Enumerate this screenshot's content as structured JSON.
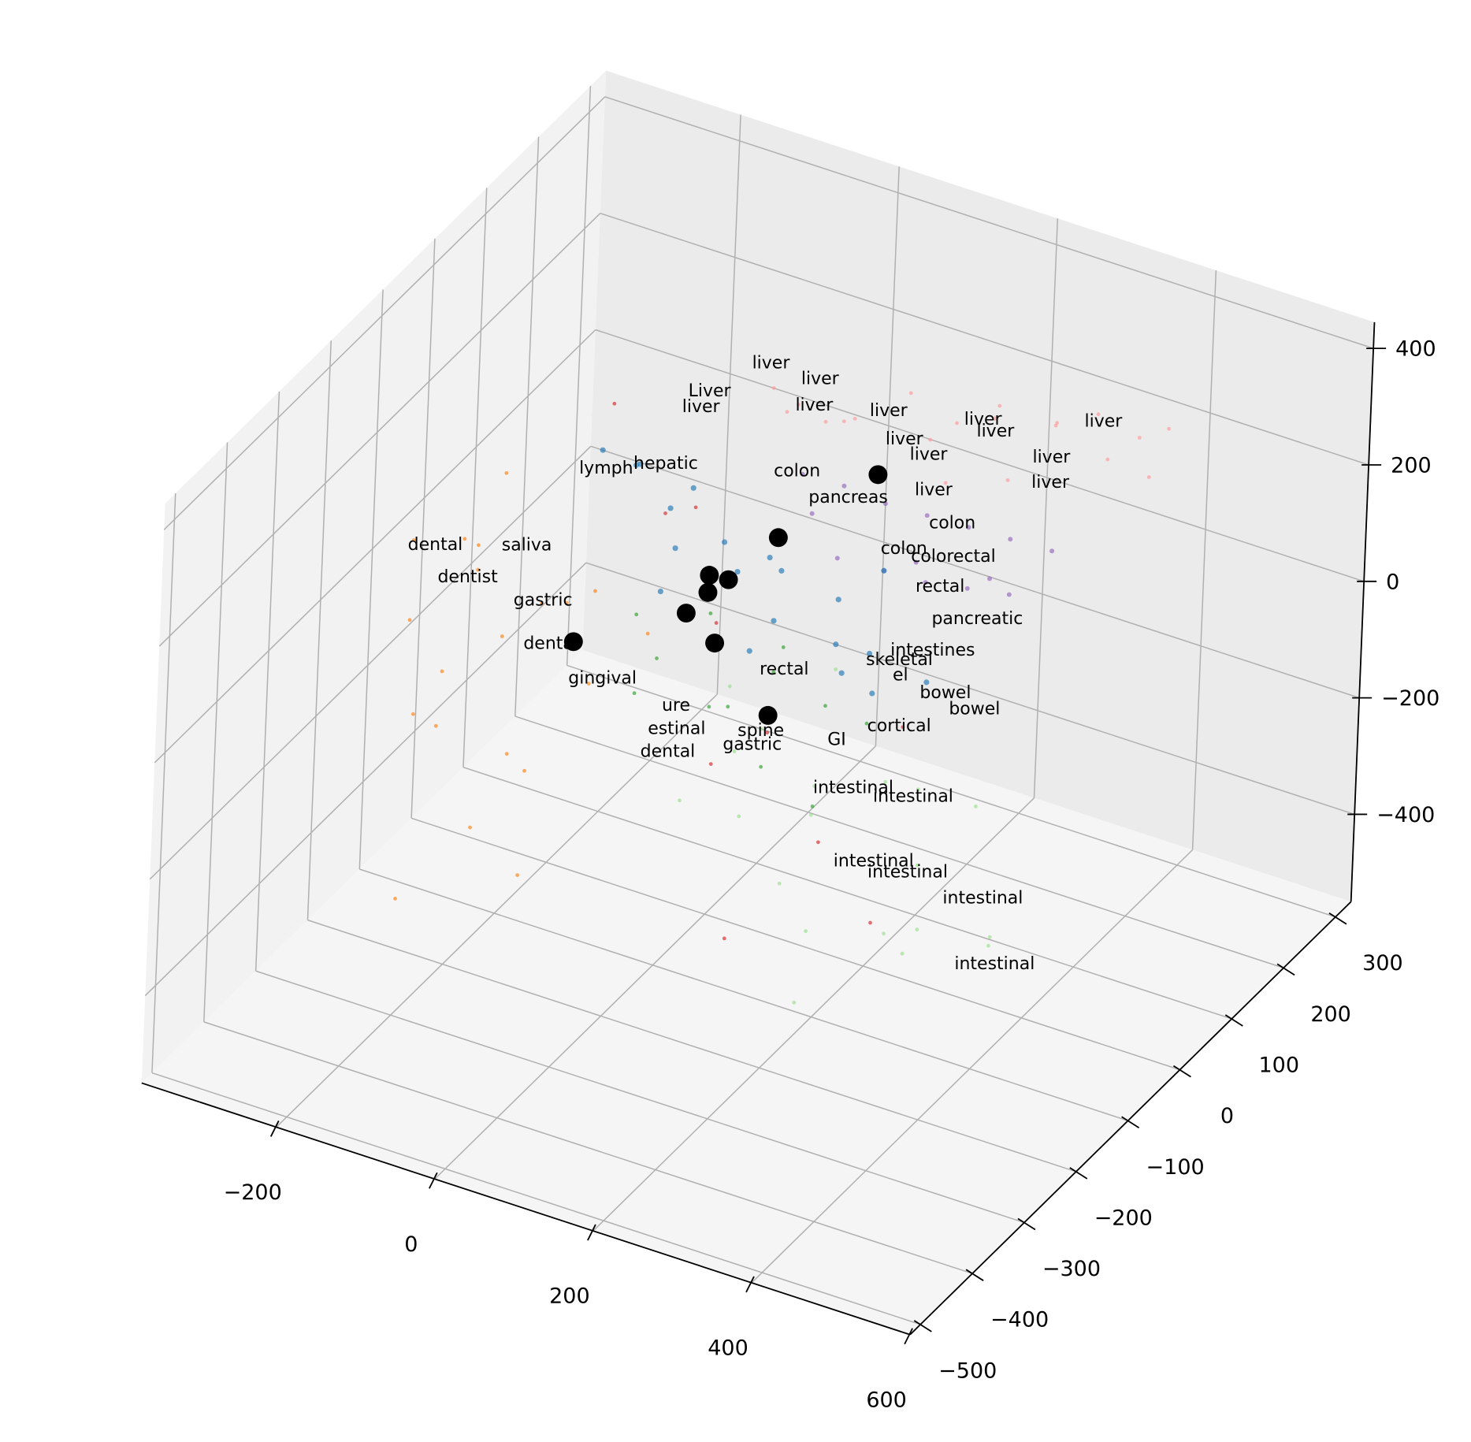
{
  "chart_data": {
    "type": "scatter3d",
    "xlim": [
      -370,
      600
    ],
    "ylim": [
      -520,
      330
    ],
    "zlim": [
      -550,
      445
    ],
    "xticks": [
      {
        "value": -200,
        "label": "−200"
      },
      0,
      200,
      400,
      600
    ],
    "yticks": [
      {
        "value": -500,
        "label": "−500"
      },
      {
        "value": -400,
        "label": "−400"
      },
      {
        "value": -300,
        "label": "−300"
      },
      {
        "value": -200,
        "label": "−200"
      },
      {
        "value": -100,
        "label": "−100"
      },
      0,
      100,
      200,
      300
    ],
    "zticks": [
      {
        "value": -400,
        "label": "−400"
      },
      {
        "value": -200,
        "label": "−200"
      },
      0,
      200,
      400
    ],
    "grid": true,
    "series": [
      {
        "color": "#ff9896",
        "size": 4,
        "x": [
          60,
          110,
          150,
          200,
          240,
          280,
          320,
          360,
          400,
          430,
          180,
          260,
          340,
          120,
          220,
          300,
          380,
          90,
          420,
          250
        ],
        "y": [
          0,
          -30,
          20,
          50,
          80,
          100,
          150,
          170,
          190,
          200,
          -50,
          30,
          120,
          10,
          60,
          90,
          160,
          -20,
          180,
          140
        ],
        "z": [
          380,
          400,
          350,
          390,
          330,
          360,
          300,
          320,
          280,
          300,
          420,
          280,
          340,
          340,
          310,
          250,
          260,
          370,
          230,
          290
        ]
      },
      {
        "color": "#9467bd",
        "size": 5,
        "x": [
          100,
          140,
          180,
          220,
          260,
          300,
          340,
          160,
          200,
          240,
          280,
          320,
          120,
          190,
          270
        ],
        "y": [
          0,
          20,
          40,
          60,
          80,
          100,
          120,
          -20,
          10,
          30,
          50,
          70,
          -10,
          90,
          110
        ],
        "z": [
          250,
          230,
          200,
          180,
          160,
          140,
          120,
          150,
          120,
          100,
          90,
          80,
          200,
          60,
          50
        ]
      },
      {
        "color": "#1f77b4",
        "size": 6,
        "x": [
          -150,
          -120,
          -90,
          -60,
          -30,
          0,
          30,
          60,
          90,
          120,
          150,
          180,
          210,
          240,
          -100,
          -40,
          20,
          80,
          140,
          200
        ],
        "y": [
          0,
          20,
          -20,
          40,
          -40,
          10,
          -10,
          30,
          -30,
          50,
          0,
          20,
          -20,
          40,
          60,
          -50,
          70,
          -60,
          30,
          10
        ],
        "z": [
          180,
          150,
          200,
          120,
          100,
          80,
          60,
          40,
          20,
          0,
          -20,
          -40,
          -60,
          -80,
          50,
          30,
          10,
          -10,
          -100,
          120
        ]
      },
      {
        "color": "#ff7f0e",
        "size": 4,
        "x": [
          -350,
          -320,
          -300,
          -280,
          -250,
          -220,
          -200,
          -180,
          -150,
          -120,
          -100,
          -80,
          -60,
          -300,
          -260,
          -240,
          -160,
          -140,
          -200,
          -330
        ],
        "y": [
          -50,
          -100,
          0,
          -150,
          -80,
          -200,
          -30,
          -120,
          -60,
          -180,
          -90,
          -250,
          -40,
          50,
          -10,
          -160,
          -220,
          -20,
          -300,
          20
        ],
        "z": [
          -20,
          -100,
          -50,
          -200,
          0,
          -150,
          -80,
          -250,
          -30,
          -200,
          -120,
          -300,
          -60,
          30,
          -180,
          -100,
          -280,
          -40,
          -350,
          -70
        ]
      },
      {
        "color": "#98df8a",
        "size": 4,
        "x": [
          20,
          60,
          100,
          140,
          180,
          220,
          260,
          300,
          340,
          380,
          120,
          200,
          280,
          360,
          80,
          160,
          240,
          320,
          400,
          50
        ],
        "y": [
          0,
          -50,
          -100,
          -20,
          -80,
          -150,
          0,
          -60,
          -120,
          -40,
          50,
          30,
          -90,
          -180,
          -30,
          -110,
          -200,
          20,
          -70,
          -140
        ],
        "z": [
          -150,
          -200,
          -250,
          -300,
          -180,
          -350,
          -220,
          -280,
          -320,
          -400,
          -120,
          -260,
          -380,
          -300,
          -170,
          -330,
          -420,
          -240,
          -350,
          -210
        ]
      },
      {
        "color": "#2ca02c",
        "size": 4,
        "x": [
          -100,
          -60,
          -20,
          20,
          60,
          100,
          140,
          180,
          -80,
          0,
          80,
          160
        ],
        "y": [
          0,
          -20,
          20,
          -40,
          40,
          -60,
          0,
          20,
          -30,
          30,
          -10,
          -50
        ],
        "z": [
          -80,
          -120,
          -60,
          -150,
          -100,
          -200,
          -130,
          -160,
          -180,
          -220,
          -90,
          -250
        ]
      },
      {
        "color": "#d62728",
        "size": 4,
        "x": [
          -200,
          -100,
          0,
          100,
          200,
          300,
          150,
          50,
          -50,
          250
        ],
        "y": [
          100,
          50,
          0,
          -50,
          -100,
          -150,
          -200,
          -80,
          30,
          -20
        ],
        "z": [
          150,
          50,
          -50,
          -150,
          -250,
          -300,
          -350,
          -200,
          100,
          -100
        ]
      },
      {
        "color": "#000000",
        "size": 20,
        "x": [
          194,
          73,
          -11,
          13,
          -12,
          -38,
          -177,
          -1,
          69
        ],
        "y": [
          0,
          0,
          0,
          0,
          0,
          0,
          0,
          0,
          0
        ],
        "z": [
          291,
          129,
          27,
          30,
          -3,
          -50,
          -161,
          -85,
          -178
        ]
      }
    ],
    "annotations": [
      {
        "text": "liver",
        "x": 55,
        "y": 0,
        "z": 420
      },
      {
        "text": "liver",
        "x": 117,
        "y": 0,
        "z": 420
      },
      {
        "text": "Liver",
        "x": -20,
        "y": 0,
        "z": 338
      },
      {
        "text": "liver",
        "x": -30,
        "y": 0,
        "z": 307
      },
      {
        "text": "liver",
        "x": 111,
        "y": 0,
        "z": 372
      },
      {
        "text": "liver",
        "x": 204,
        "y": 0,
        "z": 404
      },
      {
        "text": "liver",
        "x": 225,
        "y": 0,
        "z": 365
      },
      {
        "text": "liver",
        "x": 256,
        "y": 0,
        "z": 352
      },
      {
        "text": "liver",
        "x": 229,
        "y": 150,
        "z": 269
      },
      {
        "text": "liver",
        "x": 245,
        "y": 150,
        "z": 256
      },
      {
        "text": "liver",
        "x": 379,
        "y": 150,
        "z": 333
      },
      {
        "text": "liver",
        "x": 316,
        "y": 150,
        "z": 243
      },
      {
        "text": "liver",
        "x": 316,
        "y": 150,
        "z": 200
      },
      {
        "text": "liver",
        "x": 264,
        "y": 0,
        "z": 295
      },
      {
        "text": "colon",
        "x": 93,
        "y": 0,
        "z": 251
      },
      {
        "text": "colon",
        "x": 289,
        "y": 0,
        "z": 249
      },
      {
        "text": "colon",
        "x": 230,
        "y": 0,
        "z": 179
      },
      {
        "text": "pancreas",
        "x": 158,
        "y": 0,
        "z": 235
      },
      {
        "text": "hepatic",
        "x": -71,
        "y": 0,
        "z": 191
      },
      {
        "text": "lymph",
        "x": -145,
        "y": 0,
        "z": 150
      },
      {
        "text": "dental",
        "x": -354,
        "y": 0,
        "z": -74
      },
      {
        "text": "dentist",
        "x": -312,
        "y": 0,
        "z": -111
      },
      {
        "text": "dental",
        "x": -205,
        "y": 0,
        "z": -178
      },
      {
        "text": "gastric",
        "x": -217,
        "y": 0,
        "z": -109
      },
      {
        "text": "gingival",
        "x": -139,
        "y": 0,
        "z": -208
      },
      {
        "text": "ure",
        "x": -46,
        "y": 0,
        "z": -213
      },
      {
        "text": "estinal",
        "x": -44,
        "y": 0,
        "z": -252
      },
      {
        "text": "dental",
        "x": -54,
        "y": 0,
        "z": -296
      },
      {
        "text": "gastric",
        "x": 51,
        "y": 0,
        "z": -237
      },
      {
        "text": "GI",
        "x": 156,
        "y": 0,
        "z": -182
      },
      {
        "text": "cortical",
        "x": 233,
        "y": 0,
        "z": -124
      },
      {
        "text": "bowel",
        "x": 289,
        "y": 0,
        "z": -42
      },
      {
        "text": "bowel",
        "x": 233,
        "y": 150,
        "z": -226
      },
      {
        "text": "intestinal",
        "x": 179,
        "y": 0,
        "z": -254
      },
      {
        "text": "intestinal",
        "x": 254,
        "y": 0,
        "z": -236
      },
      {
        "text": "intestinal",
        "x": 208,
        "y": 0,
        "z": -367
      },
      {
        "text": "intestinal",
        "x": 251,
        "y": 0,
        "z": -367
      },
      {
        "text": "intestinal",
        "x": 408,
        "y": -100,
        "z": -254
      },
      {
        "text": "intestinal",
        "x": 426,
        "y": -100,
        "z": -359
      },
      {
        "text": "pancreatic",
        "x": 325,
        "y": 0,
        "z": 101
      },
      {
        "text": "intestines",
        "x": 271,
        "y": 0,
        "z": 23
      },
      {
        "text": "skeletal",
        "x": 230,
        "y": 0,
        "z": -12
      },
      {
        "text": "colorectal",
        "x": 292,
        "y": 0,
        "z": 193
      },
      {
        "text": "rectal",
        "x": 277,
        "y": 0,
        "z": 135
      },
      {
        "text": "saliva",
        "x": -240,
        "y": 0,
        "z": -24
      },
      {
        "text": "spine",
        "x": 61,
        "y": 0,
        "z": -209
      },
      {
        "text": "rectal",
        "x": 87,
        "y": 0,
        "z": -92
      },
      {
        "text": "el",
        "x": 232,
        "y": 0,
        "z": -37
      }
    ]
  }
}
